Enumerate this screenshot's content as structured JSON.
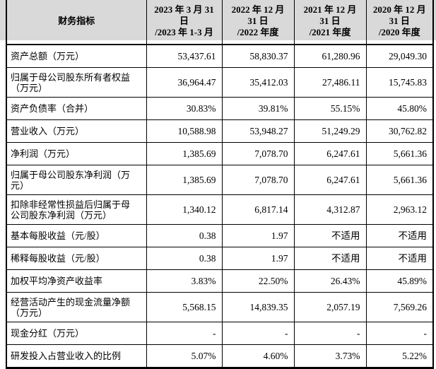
{
  "colors": {
    "header_bg": "#d9d9d9",
    "border": "#000000",
    "text": "#000000",
    "page_bg": "#ffffff"
  },
  "table": {
    "header": {
      "indicator": "财务指标",
      "periods": [
        {
          "lines": [
            "2023 年 3 月 31",
            "日",
            "/2023 年 1-3 月"
          ]
        },
        {
          "lines": [
            "2022 年 12 月",
            "31 日",
            "/2022 年度"
          ]
        },
        {
          "lines": [
            "2021 年 12 月",
            "31 日",
            "/2021 年度"
          ]
        },
        {
          "lines": [
            "2020 年 12 月",
            "31 日",
            "/2020 年度"
          ]
        }
      ]
    },
    "rows": [
      {
        "label_lines": [
          "资产总额（万元）"
        ],
        "values": [
          "53,437.61",
          "58,830.37",
          "61,280.96",
          "29,049.30"
        ]
      },
      {
        "label_lines": [
          "归属于母公司股东所有者权益",
          "（万元）"
        ],
        "values": [
          "36,964.47",
          "35,412.03",
          "27,486.11",
          "15,745.83"
        ]
      },
      {
        "label_lines": [
          "资产负债率（合并）"
        ],
        "values": [
          "30.83%",
          "39.81%",
          "55.15%",
          "45.80%"
        ]
      },
      {
        "label_lines": [
          "营业收入（万元）"
        ],
        "values": [
          "10,588.98",
          "53,948.27",
          "51,249.29",
          "30,762.82"
        ]
      },
      {
        "label_lines": [
          "净利润（万元）"
        ],
        "values": [
          "1,385.69",
          "7,078.70",
          "6,247.61",
          "5,661.36"
        ]
      },
      {
        "label_lines": [
          "归属于母公司股东净利润（万",
          "元）"
        ],
        "values": [
          "1,385.69",
          "7,078.70",
          "6,247.61",
          "5,661.36"
        ]
      },
      {
        "label_lines": [
          "扣除非经常性损益后归属于母",
          "公司股东净利润（万元）"
        ],
        "values": [
          "1,340.12",
          "6,817.14",
          "4,312.87",
          "2,963.12"
        ]
      },
      {
        "label_lines": [
          "基本每股收益（元/股）"
        ],
        "values": [
          "0.38",
          "1.97",
          "不适用",
          "不适用"
        ]
      },
      {
        "label_lines": [
          "稀释每股收益（元/股）"
        ],
        "values": [
          "0.38",
          "1.97",
          "不适用",
          "不适用"
        ]
      },
      {
        "label_lines": [
          "加权平均净资产收益率"
        ],
        "values": [
          "3.83%",
          "22.50%",
          "26.43%",
          "45.89%"
        ]
      },
      {
        "label_lines": [
          "经营活动产生的现金流量净额",
          "（万元）"
        ],
        "values": [
          "5,568.15",
          "14,839.35",
          "2,057.19",
          "7,569.26"
        ]
      },
      {
        "label_lines": [
          "现金分红（万元）"
        ],
        "values": [
          "-",
          "-",
          "-",
          "-"
        ]
      },
      {
        "label_lines": [
          "研发投入占营业收入的比例"
        ],
        "values": [
          "5.07%",
          "4.60%",
          "3.73%",
          "5.22%"
        ]
      }
    ]
  }
}
